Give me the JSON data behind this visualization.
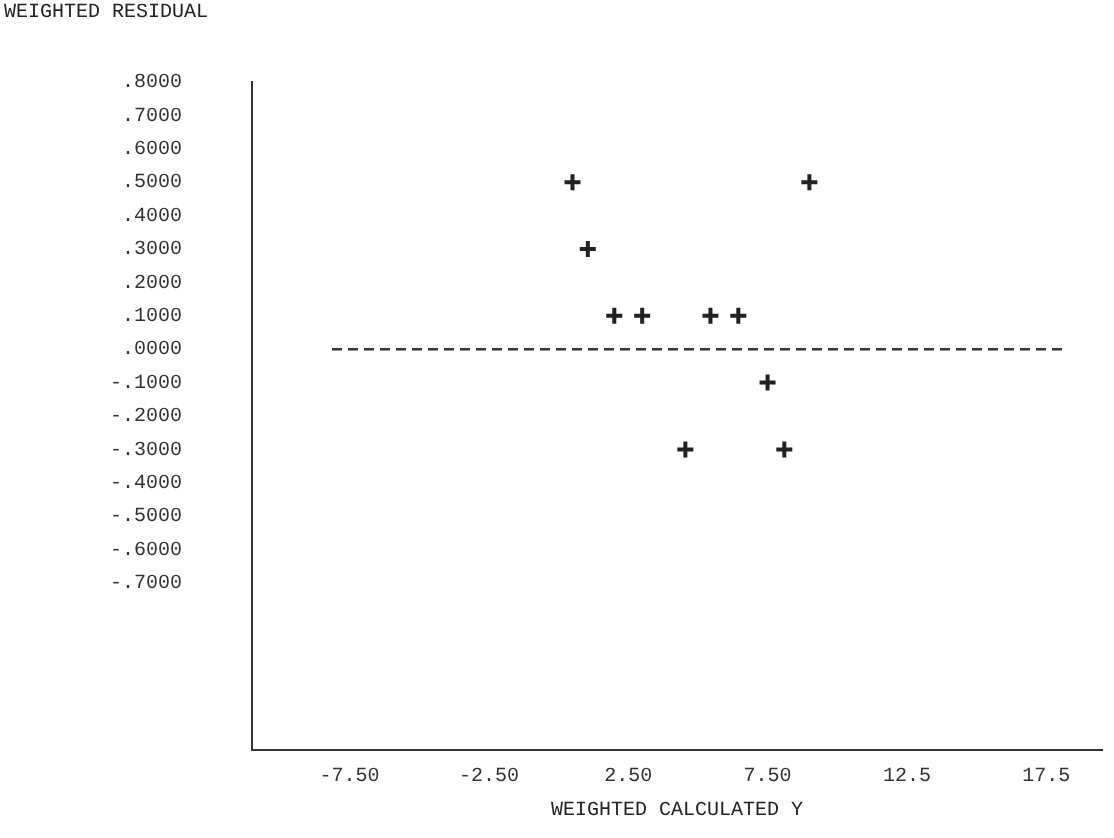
{
  "chart_data": {
    "type": "scatter",
    "ylabel": "WEIGHTED RESIDUAL",
    "xlabel": "WEIGHTED CALCULATED Y",
    "series": [
      {
        "color": "#222222",
        "x": [
          0.5,
          9.0,
          1.05,
          2.0,
          3.0,
          5.45,
          6.45,
          7.5,
          4.55,
          8.1
        ],
        "values": [
          0.5,
          0.5,
          0.3,
          0.1,
          0.1,
          0.1,
          0.1,
          -0.1,
          -0.3,
          -0.3
        ]
      }
    ],
    "xlim": [
      -11,
      19.5
    ],
    "xticks": [
      {
        "value": -7.5,
        "label": "-7.50"
      },
      {
        "value": -2.5,
        "label": "-2.50"
      },
      {
        "value": 2.5,
        "label": "2.50"
      },
      {
        "value": 7.5,
        "label": "7.50"
      },
      {
        "value": 12.5,
        "label": "12.5"
      },
      {
        "value": 17.5,
        "label": "17.5"
      }
    ],
    "ylim": [
      -1.2,
      0.8
    ],
    "yticks": [
      {
        "value": 0.8,
        "label": ".8000"
      },
      {
        "value": 0.7,
        "label": ".7000"
      },
      {
        "value": 0.6,
        "label": ".6000"
      },
      {
        "value": 0.5,
        "label": ".5000"
      },
      {
        "value": 0.4,
        "label": ".4000"
      },
      {
        "value": 0.3,
        "label": ".3000"
      },
      {
        "value": 0.2,
        "label": ".2000"
      },
      {
        "value": 0.1,
        "label": ".1000"
      },
      {
        "value": 0,
        "label": ".0000"
      },
      {
        "value": -0.1,
        "label": "-.1000"
      },
      {
        "value": -0.2,
        "label": "-.2000"
      },
      {
        "value": -0.3,
        "label": "-.3000"
      },
      {
        "value": -0.4,
        "label": "-.4000"
      },
      {
        "value": -0.5,
        "label": "-.5000"
      },
      {
        "value": -0.6,
        "label": "-.6000"
      },
      {
        "value": -0.7,
        "label": "-.7000"
      }
    ],
    "ref_lines": [
      {
        "axis": "y",
        "value": 0,
        "color": "#333333",
        "line_style": "dashed"
      }
    ],
    "grid": false,
    "legend": false,
    "marker": "cross"
  }
}
